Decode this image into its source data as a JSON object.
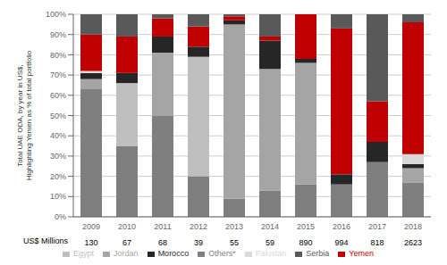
{
  "chart_data": {
    "type": "bar",
    "stacked": true,
    "ylabel": "Total UAE ODA, by year in US$,\nHighlighting Yemen as % of total portfolio",
    "categories": [
      "2009",
      "2010",
      "2011",
      "2012",
      "2013",
      "2014",
      "2015",
      "2016",
      "2017",
      "2018"
    ],
    "series": [
      {
        "name": "Others*",
        "color": "#7f7f7f",
        "values": [
          0.63,
          0.35,
          0.5,
          0.2,
          0.09,
          0.13,
          0.16,
          0.16,
          0.27,
          0.17
        ]
      },
      {
        "name": "Egypt",
        "color": "#bfbfbf",
        "values": [
          0.0,
          0.31,
          0.0,
          0.59,
          0.0,
          0.0,
          0.0,
          0.0,
          0.0,
          0.0
        ]
      },
      {
        "name": "Jordan",
        "color": "#a5a5a5",
        "values": [
          0.05,
          0.0,
          0.31,
          0.0,
          0.86,
          0.6,
          0.6,
          0.0,
          0.0,
          0.07
        ]
      },
      {
        "name": "Morocco",
        "color": "#262626",
        "values": [
          0.03,
          0.05,
          0.08,
          0.05,
          0.02,
          0.14,
          0.02,
          0.05,
          0.1,
          0.02
        ]
      },
      {
        "name": "Pakistan",
        "color": "#d9d9d9",
        "values": [
          0.01,
          0.0,
          0.0,
          0.0,
          0.0,
          0.0,
          0.0,
          0.0,
          0.0,
          0.05
        ]
      },
      {
        "name": "Yemen",
        "color": "#c00000",
        "values": [
          0.18,
          0.18,
          0.09,
          0.1,
          0.02,
          0.02,
          0.22,
          0.72,
          0.2,
          0.65
        ]
      },
      {
        "name": "Serbia",
        "color": "#595959",
        "values": [
          0.1,
          0.11,
          0.02,
          0.06,
          0.01,
          0.11,
          0.0,
          0.07,
          0.43,
          0.04
        ]
      }
    ],
    "ylim": [
      0,
      1
    ],
    "yticks": [
      {
        "value": 0,
        "label": "0%"
      },
      {
        "value": 0.1,
        "label": "10%"
      },
      {
        "value": 0.2,
        "label": "20%"
      },
      {
        "value": 0.3,
        "label": "30%"
      },
      {
        "value": 0.4,
        "label": "40%"
      },
      {
        "value": 0.5,
        "label": "50%"
      },
      {
        "value": 0.6,
        "label": "60%"
      },
      {
        "value": 0.7,
        "label": "70%"
      },
      {
        "value": 0.8,
        "label": "80%"
      },
      {
        "value": 0.9,
        "label": "90%"
      },
      {
        "value": 1,
        "label": "100%"
      }
    ],
    "grid": true,
    "legend": "bottom",
    "row_label": "US$ Millions",
    "row_values": [
      130,
      67,
      68,
      39,
      55,
      59,
      890,
      994,
      818,
      2623
    ]
  }
}
